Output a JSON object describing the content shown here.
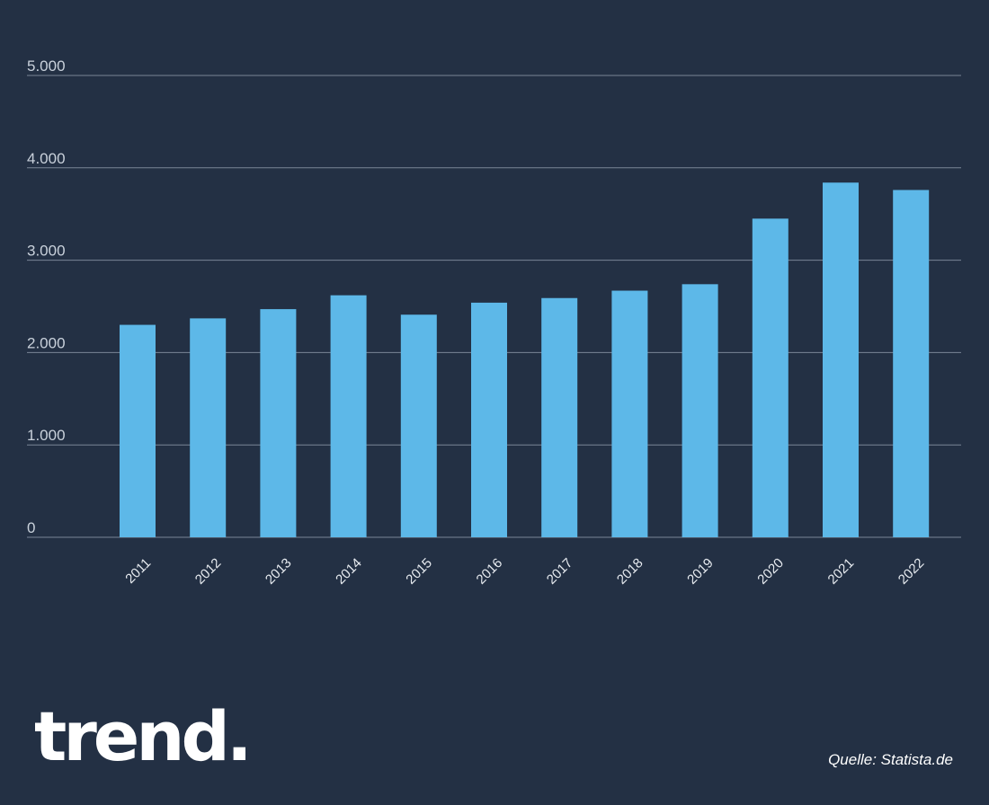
{
  "chart_data": {
    "type": "bar",
    "categories": [
      "2011",
      "2012",
      "2013",
      "2014",
      "2015",
      "2016",
      "2017",
      "2018",
      "2019",
      "2020",
      "2021",
      "2022"
    ],
    "values": [
      2300,
      2370,
      2470,
      2620,
      2410,
      2540,
      2590,
      2670,
      2740,
      3450,
      3840,
      3760
    ],
    "ylim": [
      0,
      5000
    ],
    "yticks": [
      0,
      1000,
      2000,
      3000,
      4000,
      5000
    ],
    "ytick_labels": [
      "0",
      "1.000",
      "2.000",
      "3.000",
      "4.000",
      "5.000"
    ],
    "grid": true,
    "bar_color": "#5db8e8"
  },
  "footer": {
    "logo": "trend.",
    "source": "Quelle: Statista.de"
  },
  "colors": {
    "background": "#233044",
    "gridline": "#7a8596"
  }
}
